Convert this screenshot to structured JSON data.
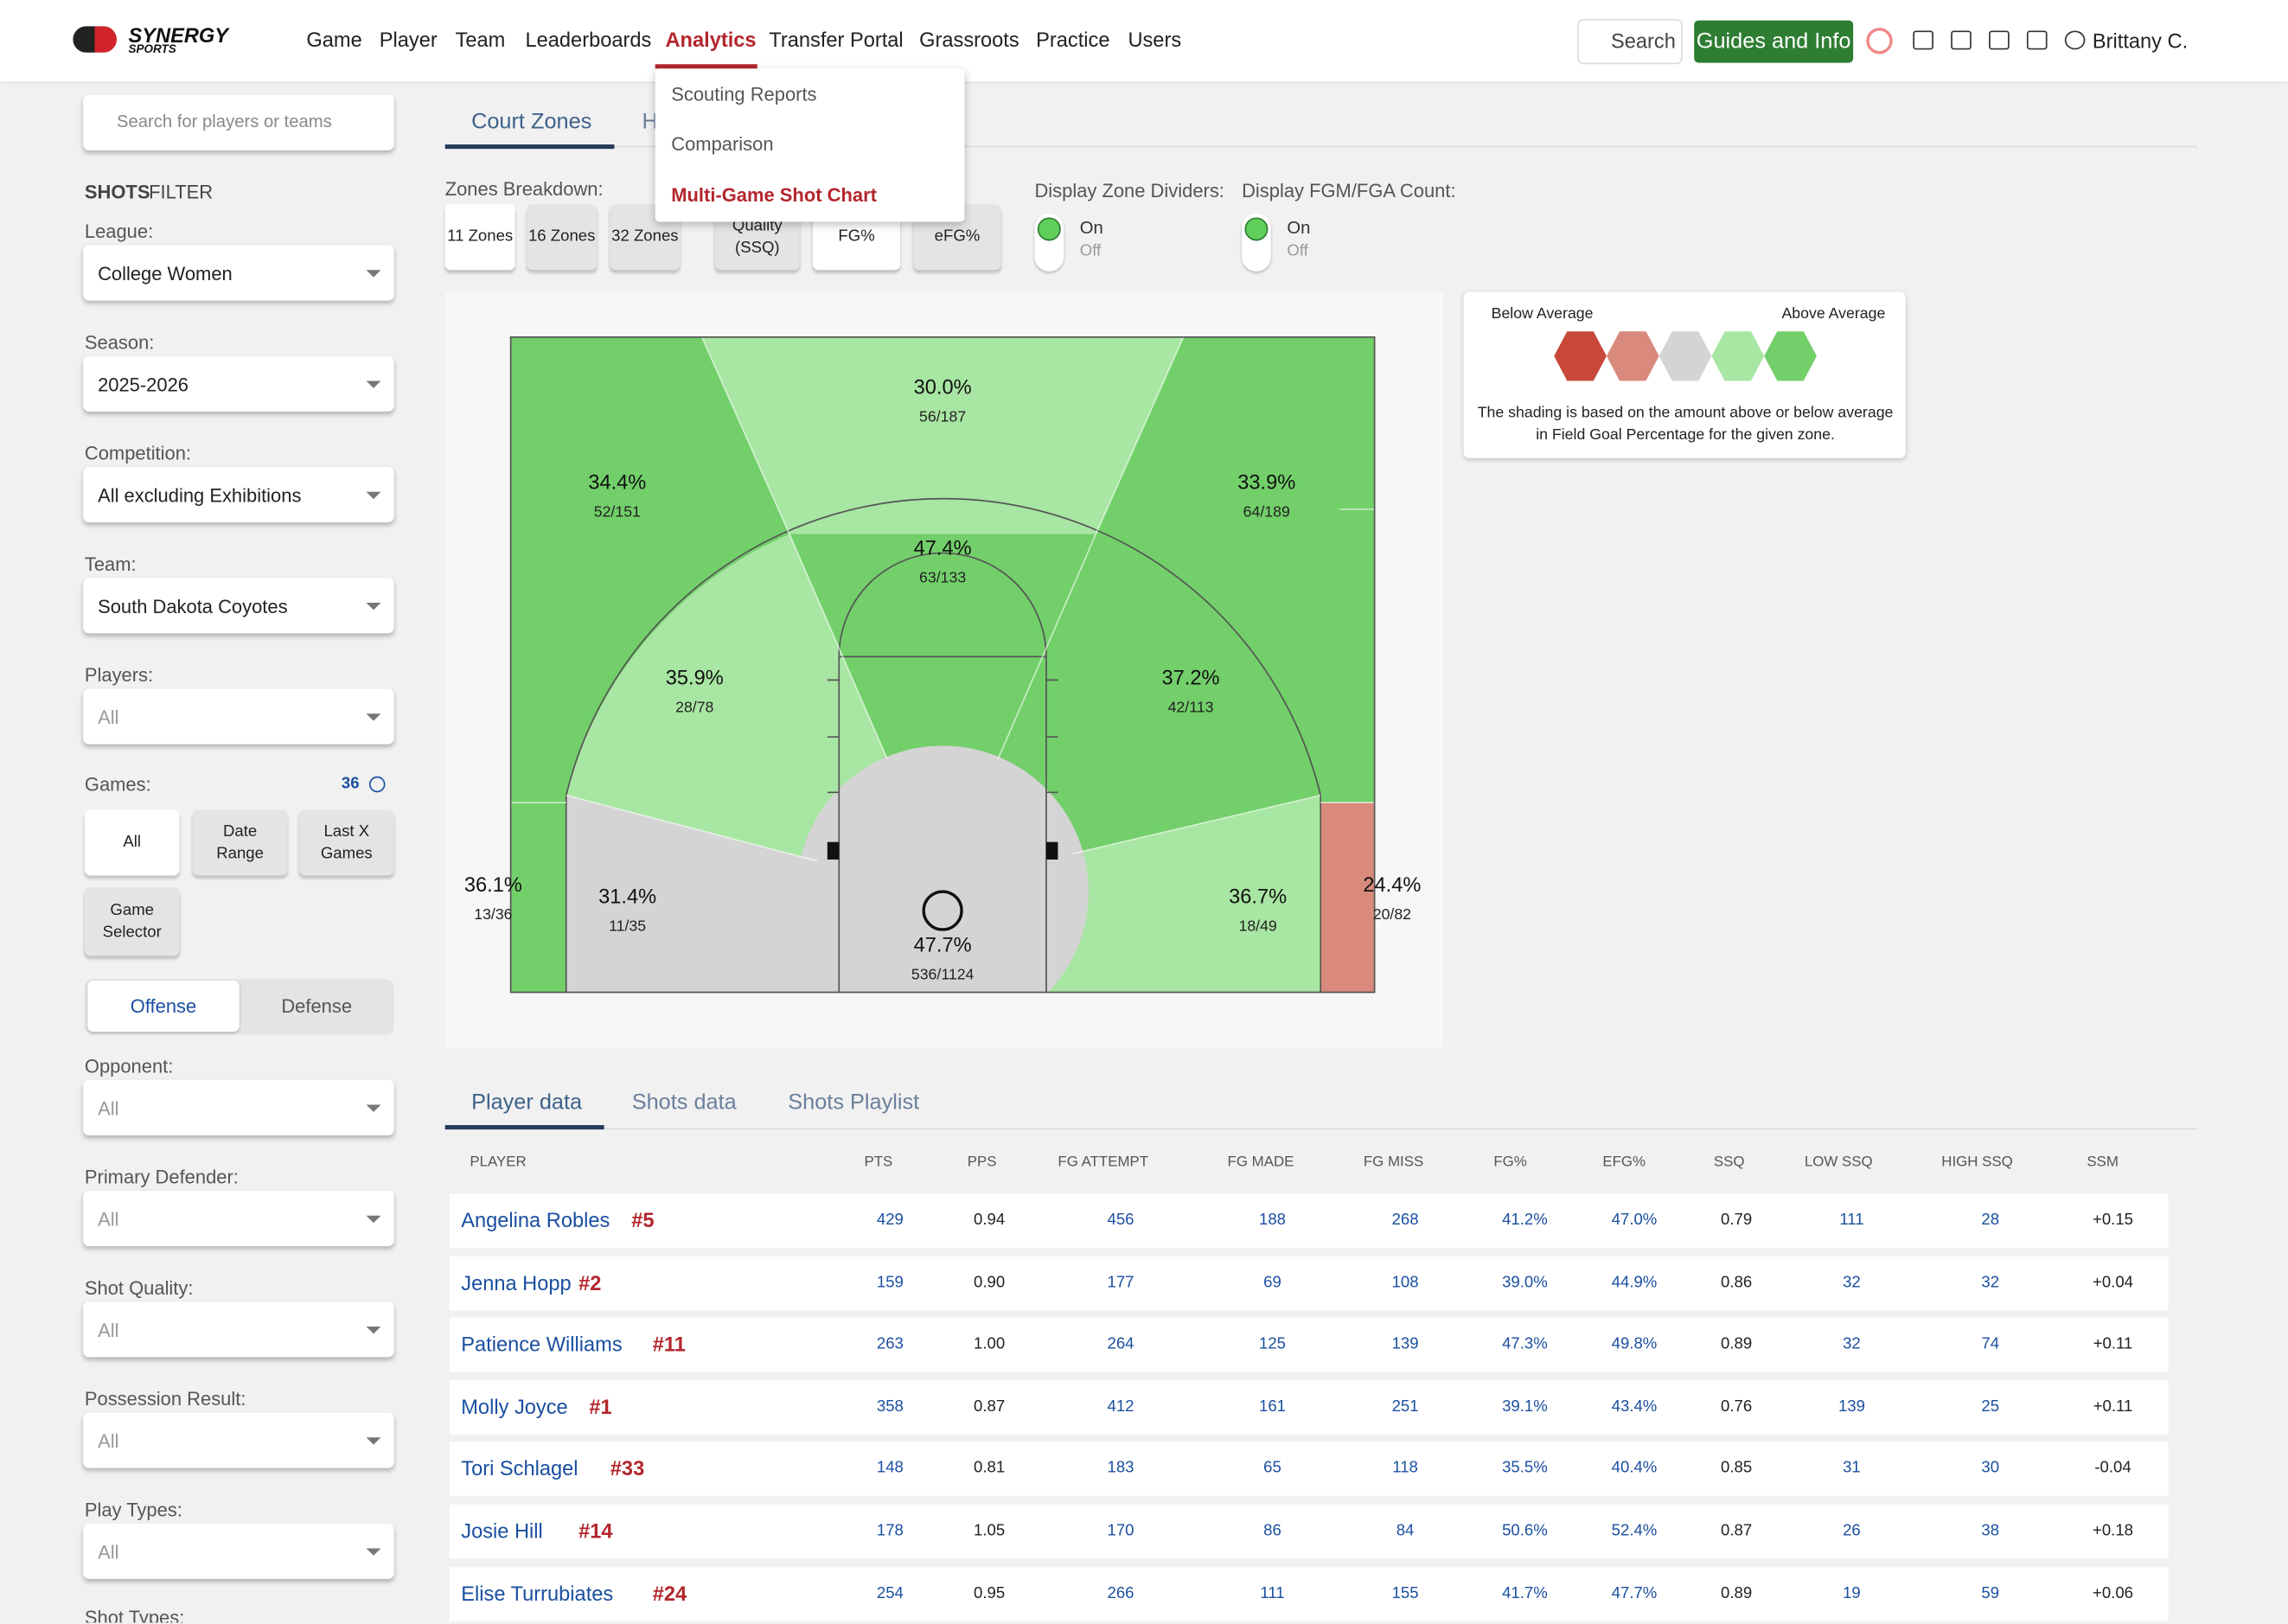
{
  "nav": {
    "logo": "SYNERGY",
    "logo_sub": "SPORTS",
    "links": [
      "Game",
      "Player",
      "Team",
      "Leaderboards",
      "Analytics",
      "Transfer Portal",
      "Grassroots",
      "Practice",
      "Users"
    ],
    "search": "Search",
    "guides": "Guides and Info",
    "user": "Brittany C."
  },
  "analytics_menu": [
    "Scouting Reports",
    "Comparison",
    "Multi-Game Shot Chart"
  ],
  "sidebar": {
    "search_placeholder": "Search for players or teams",
    "filter_title_bold": "SHOTS",
    "filter_title": "FILTER",
    "fields": [
      {
        "label": "League:",
        "value": "College Women"
      },
      {
        "label": "Season:",
        "value": "2025-2026"
      },
      {
        "label": "Competition:",
        "value": "All excluding Exhibitions"
      },
      {
        "label": "Team:",
        "value": "South Dakota Coyotes"
      },
      {
        "label": "Players:",
        "value": "All"
      }
    ],
    "games_label": "Games:",
    "games_count": "36",
    "game_buttons": [
      "All",
      "Date Range",
      "Last X Games",
      "Game Selector"
    ],
    "side_toggle": [
      "Offense",
      "Defense"
    ],
    "more_fields": [
      {
        "label": "Opponent:",
        "value": "All"
      },
      {
        "label": "Primary Defender:",
        "value": "All"
      },
      {
        "label": "Shot Quality:",
        "value": "All"
      },
      {
        "label": "Possession Result:",
        "value": "All"
      },
      {
        "label": "Play Types:",
        "value": "All"
      }
    ],
    "last_label": "Shot Types:"
  },
  "court_tabs": [
    "Court Zones",
    "H"
  ],
  "zones_label": "Zones Breakdown:",
  "zone_buttons": [
    "11 Zones",
    "16 Zones",
    "32 Zones"
  ],
  "metric_buttons": [
    "Quality (SSQ)",
    "FG%",
    "eFG%"
  ],
  "switches": [
    {
      "label": "Display Zone Dividers:",
      "on": "On",
      "off": "Off"
    },
    {
      "label": "Display FGM/FGA Count:",
      "on": "On",
      "off": "Off"
    }
  ],
  "legend": {
    "below": "Below Average",
    "above": "Above Average",
    "note": "The shading is based on the amount above or below average in Field Goal Percentage for the given zone."
  },
  "zones": [
    {
      "pct": "30.0%",
      "count": "56/187"
    },
    {
      "pct": "34.4%",
      "count": "52/151"
    },
    {
      "pct": "33.9%",
      "count": "64/189"
    },
    {
      "pct": "47.4%",
      "count": "63/133"
    },
    {
      "pct": "35.9%",
      "count": "28/78"
    },
    {
      "pct": "37.2%",
      "count": "42/113"
    },
    {
      "pct": "36.1%",
      "count": "13/36"
    },
    {
      "pct": "31.4%",
      "count": "11/35"
    },
    {
      "pct": "47.7%",
      "count": "536/1124"
    },
    {
      "pct": "36.7%",
      "count": "18/49"
    },
    {
      "pct": "24.4%",
      "count": "20/82"
    }
  ],
  "data_tabs": [
    "Player data",
    "Shots data",
    "Shots Playlist"
  ],
  "table": {
    "columns": [
      "PLAYER",
      "PTS",
      "PPS",
      "FG ATTEMPT",
      "FG MADE",
      "FG MISS",
      "FG%",
      "EFG%",
      "SSQ",
      "LOW SSQ",
      "HIGH SSQ",
      "SSM"
    ],
    "rows": [
      {
        "name": "Angelina Robles",
        "number": "#5",
        "cells": [
          "429",
          "0.94",
          "456",
          "188",
          "268",
          "41.2%",
          "47.0%",
          "0.79",
          "111",
          "28",
          "+0.15"
        ]
      },
      {
        "name": "Jenna Hopp",
        "number": "#2",
        "cells": [
          "159",
          "0.90",
          "177",
          "69",
          "108",
          "39.0%",
          "44.9%",
          "0.86",
          "32",
          "32",
          "+0.04"
        ]
      },
      {
        "name": "Patience Williams",
        "number": "#11",
        "cells": [
          "263",
          "1.00",
          "264",
          "125",
          "139",
          "47.3%",
          "49.8%",
          "0.89",
          "32",
          "74",
          "+0.11"
        ]
      },
      {
        "name": "Molly Joyce",
        "number": "#1",
        "cells": [
          "358",
          "0.87",
          "412",
          "161",
          "251",
          "39.1%",
          "43.4%",
          "0.76",
          "139",
          "25",
          "+0.11"
        ]
      },
      {
        "name": "Tori Schlagel",
        "number": "#33",
        "cells": [
          "148",
          "0.81",
          "183",
          "65",
          "118",
          "35.5%",
          "40.4%",
          "0.85",
          "31",
          "30",
          "-0.04"
        ]
      },
      {
        "name": "Josie Hill",
        "number": "#14",
        "cells": [
          "178",
          "1.05",
          "170",
          "86",
          "84",
          "50.6%",
          "52.4%",
          "0.87",
          "26",
          "38",
          "+0.18"
        ]
      },
      {
        "name": "Elise Turrubiates",
        "number": "#24",
        "cells": [
          "254",
          "0.95",
          "266",
          "111",
          "155",
          "41.7%",
          "47.7%",
          "0.89",
          "19",
          "59",
          "+0.06"
        ]
      }
    ]
  }
}
